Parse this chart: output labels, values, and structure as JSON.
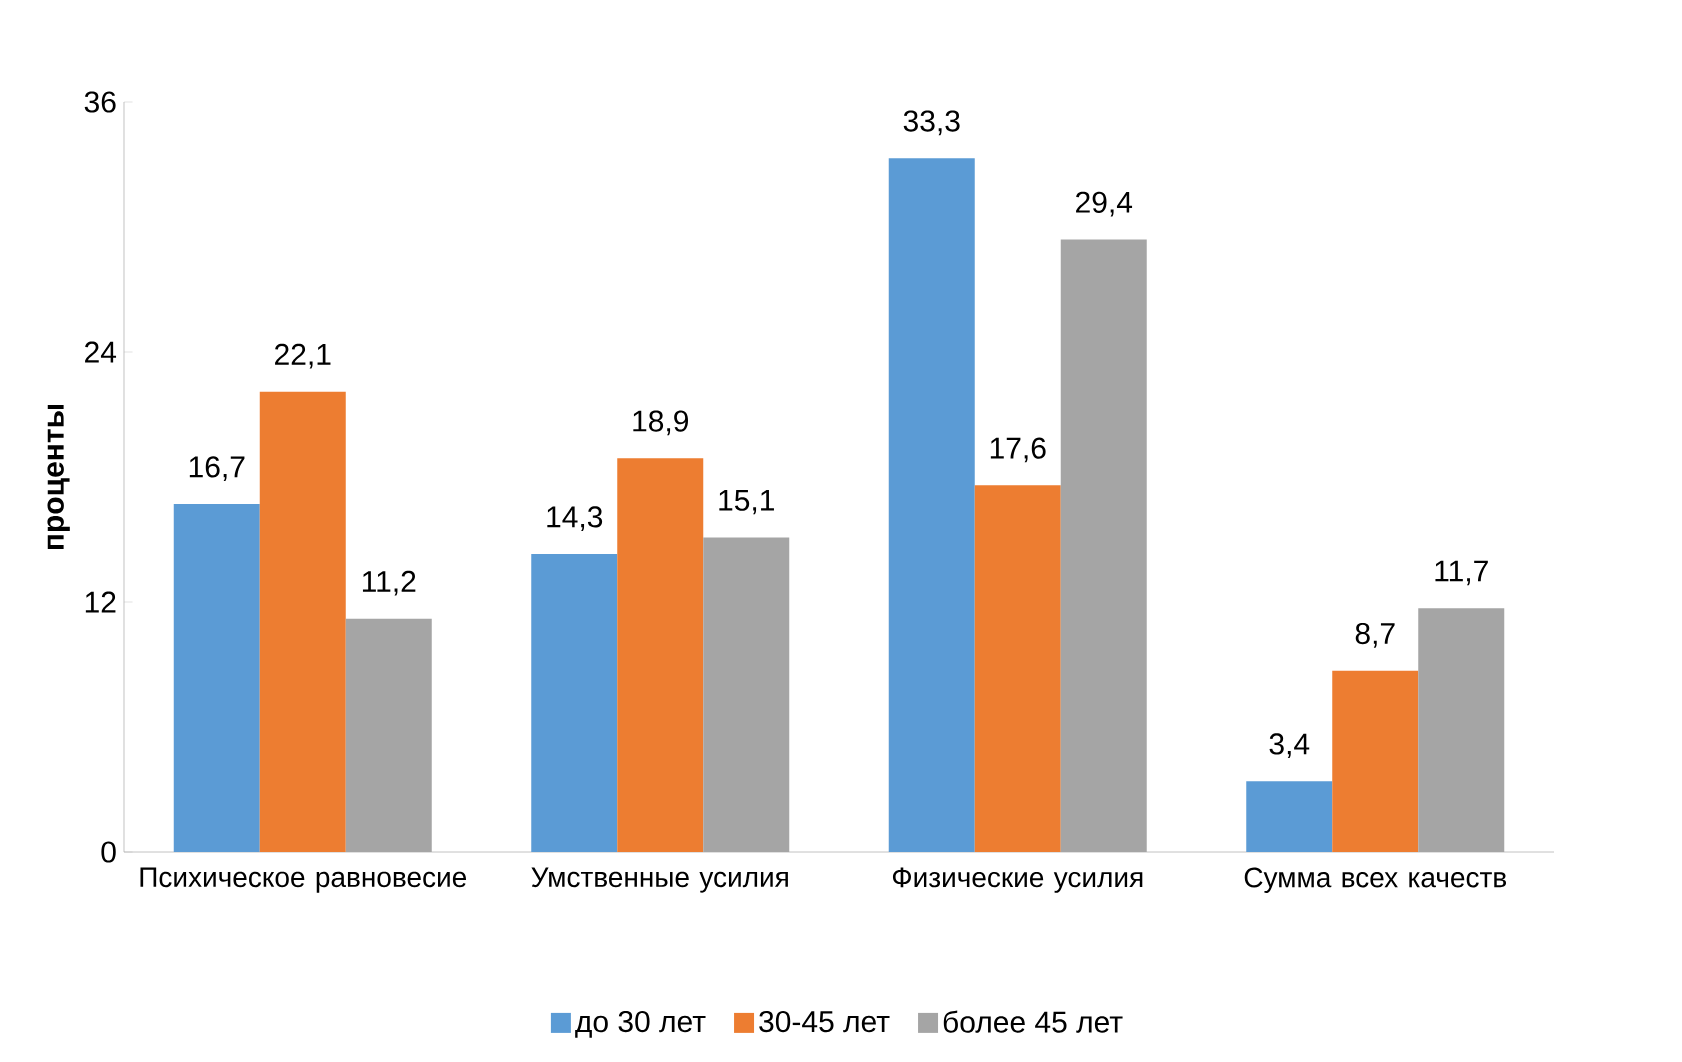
{
  "chart_data": {
    "type": "bar",
    "ylabel": "проценты",
    "categories": [
      "Психическое равновесие",
      "Умственные усилия",
      "Физические усилия",
      "Сумма всех качеств"
    ],
    "series": [
      {
        "name": "до 30 лет",
        "color": "#5b9bd5",
        "values": [
          16.7,
          14.3,
          33.3,
          3.4
        ],
        "value_labels": [
          "16,7",
          "14,3",
          "33,3",
          "3,4"
        ]
      },
      {
        "name": "30-45 лет",
        "color": "#ed7d31",
        "values": [
          22.1,
          18.9,
          17.6,
          8.7
        ],
        "value_labels": [
          "22,1",
          "18,9",
          "17,6",
          "8,7"
        ]
      },
      {
        "name": "более 45 лет",
        "color": "#a5a5a5",
        "values": [
          11.2,
          15.1,
          29.4,
          11.7
        ],
        "value_labels": [
          "11,2",
          "15,1",
          "29,4",
          "11,7"
        ]
      }
    ],
    "ylim": [
      0,
      36
    ],
    "yticks": [
      0,
      12,
      24,
      36
    ],
    "legend": "bottom"
  }
}
